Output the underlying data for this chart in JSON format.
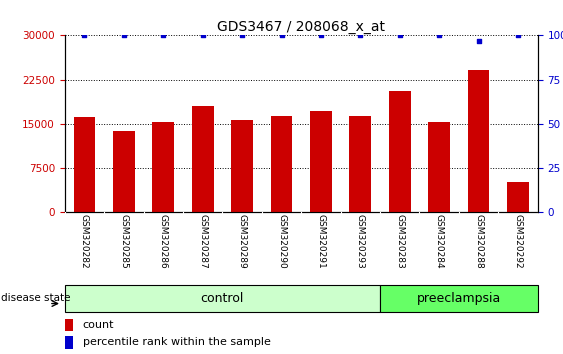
{
  "title": "GDS3467 / 208068_x_at",
  "categories": [
    "GSM320282",
    "GSM320285",
    "GSM320286",
    "GSM320287",
    "GSM320289",
    "GSM320290",
    "GSM320291",
    "GSM320293",
    "GSM320283",
    "GSM320284",
    "GSM320288",
    "GSM320292"
  ],
  "bar_values": [
    16200,
    13800,
    15300,
    18000,
    15700,
    16300,
    17200,
    16400,
    20500,
    15300,
    24200,
    5200
  ],
  "percentile_values": [
    100,
    100,
    100,
    100,
    100,
    100,
    100,
    100,
    100,
    100,
    97,
    100
  ],
  "bar_color": "#cc0000",
  "percentile_color": "#0000cc",
  "ylim_left": [
    0,
    30000
  ],
  "ylim_right": [
    0,
    100
  ],
  "yticks_left": [
    0,
    7500,
    15000,
    22500,
    30000
  ],
  "yticks_right": [
    0,
    25,
    50,
    75,
    100
  ],
  "control_count": 8,
  "preeclampsia_count": 4,
  "control_label": "control",
  "preeclampsia_label": "preeclampsia",
  "disease_state_label": "disease state",
  "legend_count_label": "count",
  "legend_percentile_label": "percentile rank within the sample",
  "control_color": "#ccffcc",
  "preeclampsia_color": "#66ff66",
  "tick_bg_color": "#cccccc",
  "background_color": "#ffffff",
  "bar_width": 0.55
}
